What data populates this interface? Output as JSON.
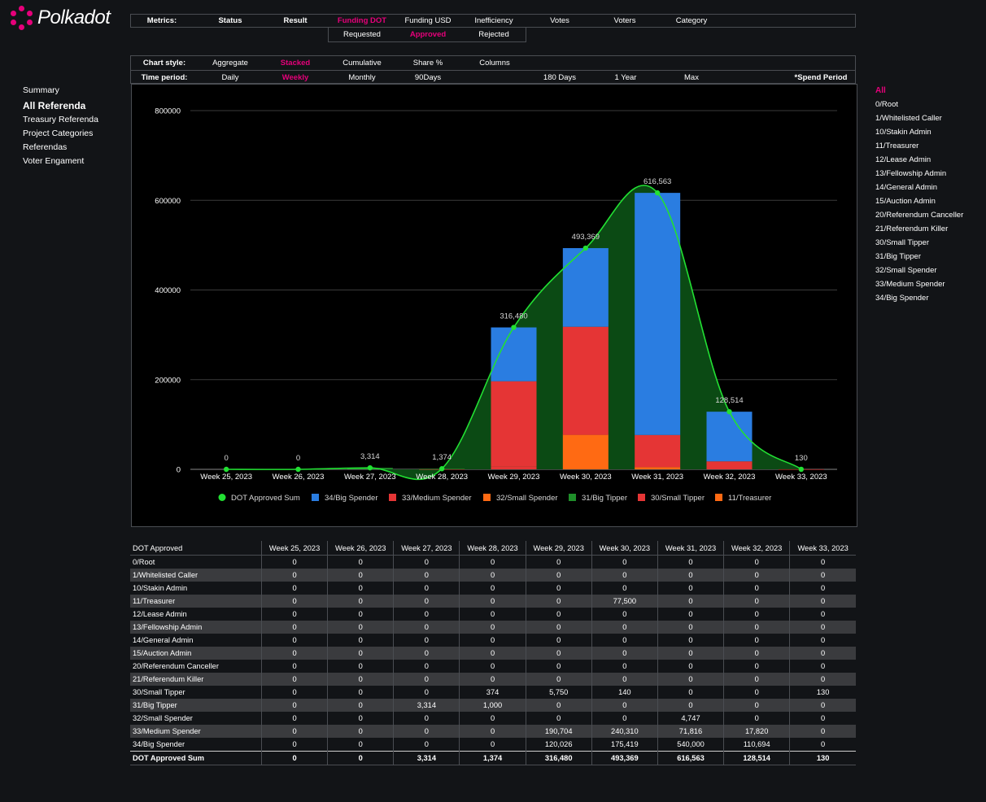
{
  "brand": {
    "name": "Polkadot",
    "accent": "#e6007a"
  },
  "metrics_bar": {
    "label": "Metrics:",
    "items": [
      "Status",
      "Result",
      "Funding DOT",
      "Funding USD",
      "Inefficiency",
      "Votes",
      "Voters",
      "Category"
    ],
    "active": "Funding DOT",
    "sub_items": [
      "Requested",
      "Approved",
      "Rejected"
    ],
    "sub_active": "Approved"
  },
  "chart_style_bar": {
    "label": "Chart style:",
    "items": [
      "Aggregate",
      "Stacked",
      "Cumulative",
      "Share %",
      "Columns"
    ],
    "active": "Stacked"
  },
  "time_period_bar": {
    "label": "Time period:",
    "items": [
      "Daily",
      "Weekly",
      "Monthly",
      "90Days",
      "180 Days",
      "1 Year",
      "Max"
    ],
    "active": "Weekly",
    "spend_period": "*Spend Period"
  },
  "left_nav": {
    "items": [
      "Summary",
      "All Referenda",
      "Treasury Referenda",
      "Project Categories",
      "Referendas",
      "Voter Engament"
    ],
    "active": "All Referenda"
  },
  "right_filter": {
    "items": [
      "All",
      "0/Root",
      "1/Whitelisted Caller",
      "10/Stakin Admin",
      "11/Treasurer",
      "12/Lease Admin",
      "13/Fellowship Admin",
      "14/General Admin",
      "15/Auction Admin",
      "20/Referendum Canceller",
      "21/Referendum Killer",
      "30/Small Tipper",
      "31/Big Tipper",
      "32/Small Spender",
      "33/Medium Spender",
      "34/Big Spender"
    ],
    "active": "All"
  },
  "chart_data": {
    "type": "bar",
    "stacked": true,
    "title": "",
    "xlabel": "",
    "ylabel": "",
    "ylim": [
      0,
      800000
    ],
    "yticks": [
      "0",
      "200000",
      "400000",
      "600000",
      "800000"
    ],
    "grid": true,
    "legend_position": "bottom",
    "categories": [
      "Week 25, 2023",
      "Week 26, 2023",
      "Week 27, 2023",
      "Week 28, 2023",
      "Week 29, 2023",
      "Week 30, 2023",
      "Week 31, 2023",
      "Week 32, 2023",
      "Week 33, 2023"
    ],
    "series": [
      {
        "name": "11/Treasurer",
        "color": "#ff6a13",
        "values": [
          0,
          0,
          0,
          0,
          0,
          77500,
          0,
          0,
          0
        ]
      },
      {
        "name": "30/Small Tipper",
        "color": "#e53535",
        "values": [
          0,
          0,
          0,
          374,
          5750,
          140,
          0,
          0,
          130
        ]
      },
      {
        "name": "31/Big Tipper",
        "color": "#1f8f2a",
        "values": [
          0,
          0,
          3314,
          1000,
          0,
          0,
          0,
          0,
          0
        ]
      },
      {
        "name": "32/Small Spender",
        "color": "#ff6a13",
        "values": [
          0,
          0,
          0,
          0,
          0,
          0,
          4747,
          0,
          0
        ]
      },
      {
        "name": "33/Medium Spender",
        "color": "#e53535",
        "values": [
          0,
          0,
          0,
          0,
          190704,
          240310,
          71816,
          17820,
          0
        ]
      },
      {
        "name": "34/Big Spender",
        "color": "#2a7de1",
        "values": [
          0,
          0,
          0,
          0,
          120026,
          175419,
          540000,
          110694,
          0
        ]
      }
    ],
    "line_series": {
      "name": "DOT Approved Sum",
      "color": "#22e033",
      "fill": "#0b4a14",
      "values": [
        0,
        0,
        3314,
        1374,
        316480,
        493369,
        616563,
        128514,
        130
      ],
      "labels": [
        "0",
        "0",
        "3,314",
        "1,374",
        "316,480",
        "493,369",
        "616,563",
        "128,514",
        "130"
      ]
    },
    "legend": [
      "DOT Approved Sum",
      "34/Big Spender",
      "33/Medium Spender",
      "32/Small Spender",
      "31/Big Tipper",
      "30/Small Tipper",
      "11/Treasurer"
    ]
  },
  "table": {
    "header": [
      "DOT Approved",
      "Week 25, 2023",
      "Week 26, 2023",
      "Week 27, 2023",
      "Week 28, 2023",
      "Week 29, 2023",
      "Week 30, 2023",
      "Week 31, 2023",
      "Week 32, 2023",
      "Week 33, 2023"
    ],
    "rows": [
      [
        "0/Root",
        "0",
        "0",
        "0",
        "0",
        "0",
        "0",
        "0",
        "0",
        "0"
      ],
      [
        "1/Whitelisted Caller",
        "0",
        "0",
        "0",
        "0",
        "0",
        "0",
        "0",
        "0",
        "0"
      ],
      [
        "10/Stakin Admin",
        "0",
        "0",
        "0",
        "0",
        "0",
        "0",
        "0",
        "0",
        "0"
      ],
      [
        "11/Treasurer",
        "0",
        "0",
        "0",
        "0",
        "0",
        "77,500",
        "0",
        "0",
        "0"
      ],
      [
        "12/Lease Admin",
        "0",
        "0",
        "0",
        "0",
        "0",
        "0",
        "0",
        "0",
        "0"
      ],
      [
        "13/Fellowship Admin",
        "0",
        "0",
        "0",
        "0",
        "0",
        "0",
        "0",
        "0",
        "0"
      ],
      [
        "14/General Admin",
        "0",
        "0",
        "0",
        "0",
        "0",
        "0",
        "0",
        "0",
        "0"
      ],
      [
        "15/Auction Admin",
        "0",
        "0",
        "0",
        "0",
        "0",
        "0",
        "0",
        "0",
        "0"
      ],
      [
        "20/Referendum Canceller",
        "0",
        "0",
        "0",
        "0",
        "0",
        "0",
        "0",
        "0",
        "0"
      ],
      [
        "21/Referendum Killer",
        "0",
        "0",
        "0",
        "0",
        "0",
        "0",
        "0",
        "0",
        "0"
      ],
      [
        "30/Small Tipper",
        "0",
        "0",
        "0",
        "374",
        "5,750",
        "140",
        "0",
        "0",
        "130"
      ],
      [
        "31/Big Tipper",
        "0",
        "0",
        "3,314",
        "1,000",
        "0",
        "0",
        "0",
        "0",
        "0"
      ],
      [
        "32/Small Spender",
        "0",
        "0",
        "0",
        "0",
        "0",
        "0",
        "4,747",
        "0",
        "0"
      ],
      [
        "33/Medium Spender",
        "0",
        "0",
        "0",
        "0",
        "190,704",
        "240,310",
        "71,816",
        "17,820",
        "0"
      ],
      [
        "34/Big Spender",
        "0",
        "0",
        "0",
        "0",
        "120,026",
        "175,419",
        "540,000",
        "110,694",
        "0"
      ]
    ],
    "total": [
      "DOT Approved Sum",
      "0",
      "0",
      "3,314",
      "1,374",
      "316,480",
      "493,369",
      "616,563",
      "128,514",
      "130"
    ]
  }
}
